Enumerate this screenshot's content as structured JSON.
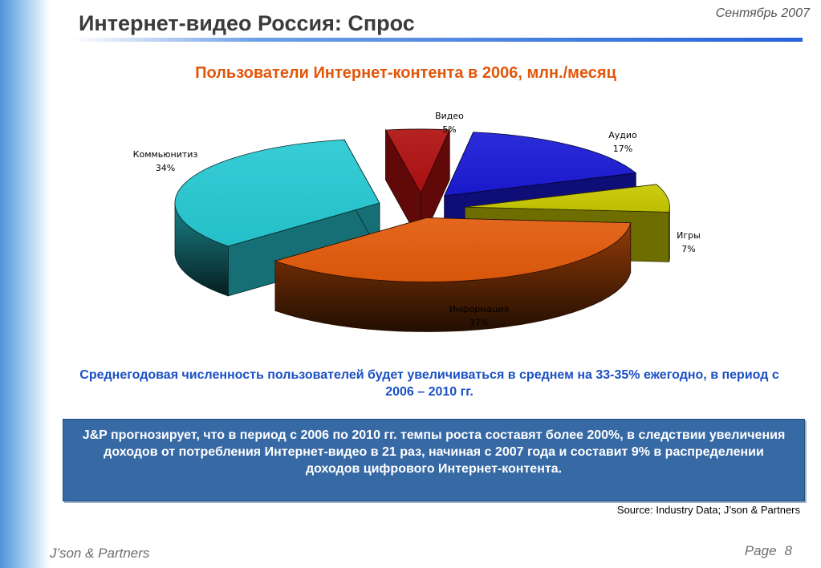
{
  "header": {
    "title": "Интернет-видео Россия: Спрос",
    "date": "Сентябрь 2007"
  },
  "chart_data": {
    "type": "pie",
    "title": "Пользователи Интернет-контента в 2006, млн./месяц",
    "slices": [
      {
        "label": "Видео",
        "percent_label": "5%",
        "value": 5,
        "color": "#b01010"
      },
      {
        "label": "Аудио",
        "percent_label": "17%",
        "value": 17,
        "color": "#1a1ad6"
      },
      {
        "label": "Игры",
        "percent_label": "7%",
        "value": 7,
        "color": "#c8c800"
      },
      {
        "label": "Информация",
        "percent_label": "37%",
        "value": 37,
        "color": "#e25a0a"
      },
      {
        "label": "Коммьюнитиз",
        "percent_label": "34%",
        "value": 34,
        "color": "#26c9d3"
      }
    ],
    "legend": "none"
  },
  "caption": "Среднегодовая численность пользователей будет увеличиваться в среднем на 33-35% ежегодно, в период с 2006 – 2010 гг.",
  "note": "J&P прогнозирует, что в период с 2006 по 2010 гг. темпы роста составят более 200%, в следствии увеличения доходов от потребления Интернет-видео в 21 раз, начиная с 2007 года и составит 9% в распределении доходов цифрового Интернет-контента.",
  "source": "Source: Industry Data; J’son & Partners",
  "footer": {
    "brand": "J’son & Partners",
    "page_label": "Page",
    "page_number": "8"
  }
}
